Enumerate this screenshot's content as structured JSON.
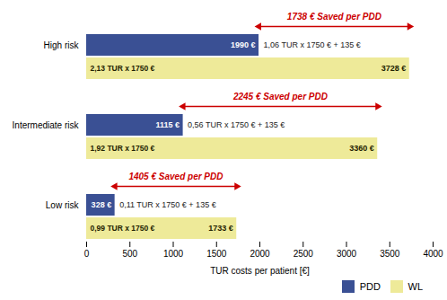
{
  "chart_data": {
    "type": "bar",
    "orientation": "horizontal",
    "categories": [
      "High risk",
      "Intermediate risk",
      "Low risk"
    ],
    "series": [
      {
        "name": "PDD",
        "color": "#3A5094",
        "values": [
          1990,
          1115,
          328
        ],
        "value_labels": [
          "1990 €",
          "1115 €",
          "328 €"
        ],
        "formula_labels": [
          "1,06 TUR x 1750 € + 135 €",
          "0,56 TUR x 1750 € + 135 €",
          "0,11 TUR x 1750 € + 135 €"
        ]
      },
      {
        "name": "WL",
        "color": "#EEEA99",
        "values": [
          3728,
          3360,
          1733
        ],
        "value_labels": [
          "3728 €",
          "3360 €",
          "1733 €"
        ],
        "formula_labels": [
          "2,13 TUR x 1750 €",
          "1,92 TUR x 1750 €",
          "0,99 TUR x 1750 €"
        ]
      }
    ],
    "annotations": [
      {
        "text": "1738 € Saved per PDD",
        "category": "High risk",
        "from": 1990,
        "to": 3728,
        "color": "#CC0000"
      },
      {
        "text": "2245 € Saved per PDD",
        "category": "Intermediate risk",
        "from": 1115,
        "to": 3360,
        "color": "#CC0000"
      },
      {
        "text": "1405 € Saved per PDD",
        "category": "Low risk",
        "from": 328,
        "to": 1733,
        "color": "#CC0000"
      }
    ],
    "xlabel": "TUR costs per patient [€]",
    "xlim": [
      0,
      4000
    ],
    "xticks": [
      0,
      500,
      1000,
      1500,
      2000,
      2500,
      3000,
      3500,
      4000
    ],
    "data_labels": true,
    "legend": "lower right",
    "grid": false
  }
}
